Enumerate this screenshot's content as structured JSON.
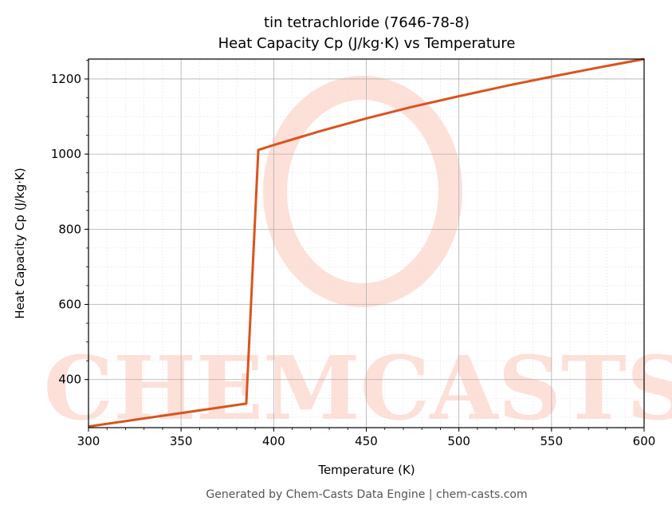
{
  "chart_data": {
    "type": "line",
    "title": "tin tetrachloride (7646-78-8)",
    "subtitle": "Heat Capacity Cp (J/kg·K) vs Temperature",
    "x_label": "Temperature (K)",
    "y_label": "Heat Capacity Cp (J/kg·K)",
    "footer": "Generated by Chem-Casts Data Engine | chem-casts.com",
    "watermark": "CHEMCASTS",
    "x": [
      300,
      385.2,
      391.7,
      400,
      425,
      450,
      475,
      500,
      525,
      550,
      575,
      600
    ],
    "series": [
      {
        "name": "Cp",
        "color": "#d9541e",
        "values": [
          275,
          336,
          1011,
          1024,
          1061,
          1095,
          1126,
          1154,
          1181,
          1206,
          1230,
          1253
        ]
      }
    ],
    "xlim": [
      300,
      600
    ],
    "xticks": [
      300,
      350,
      400,
      450,
      500,
      550,
      600
    ],
    "ylim": [
      272,
      1253
    ],
    "yticks": [
      400,
      600,
      800,
      1000,
      1200
    ],
    "grid": true
  }
}
